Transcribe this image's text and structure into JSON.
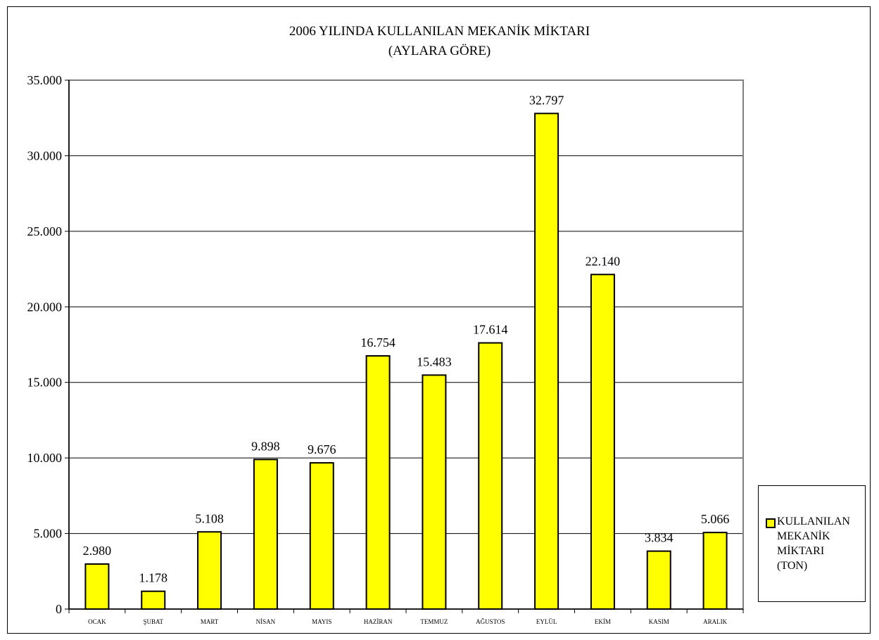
{
  "chart_data": {
    "type": "bar",
    "title": "2006 YILINDA KULLANILAN MEKANİK MİKTARI",
    "subtitle": "(AYLARA GÖRE)",
    "categories": [
      "OCAK",
      "ŞUBAT",
      "MART",
      "NİSAN",
      "MAYIS",
      "HAZİRAN",
      "TEMMUZ",
      "AĞUSTOS",
      "EYLÜL",
      "EKİM",
      "KASIM",
      "ARALIK"
    ],
    "series": [
      {
        "name": "KULLANILAN MEKANİK MİKTARI (TON)",
        "values": [
          2980,
          1178,
          5108,
          9898,
          9676,
          16754,
          15483,
          17614,
          32797,
          22140,
          3834,
          5066
        ],
        "data_labels": [
          "2.980",
          "1.178",
          "5.108",
          "9.898",
          "9.676",
          "16.754",
          "15.483",
          "17.614",
          "32.797",
          "22.140",
          "3.834",
          "5.066"
        ],
        "color": "#ffff00"
      }
    ],
    "ylim": [
      0,
      35000
    ],
    "yticks": [
      0,
      5000,
      10000,
      15000,
      20000,
      25000,
      30000,
      35000
    ],
    "ytick_labels": [
      "0",
      "5.000",
      "10.000",
      "15.000",
      "20.000",
      "25.000",
      "30.000",
      "35.000"
    ],
    "xlabel": "",
    "ylabel": "",
    "grid": true,
    "legend_position": "right"
  },
  "legend": {
    "label_lines": [
      "KULLANILAN",
      "MEKANİK",
      "MİKTARI",
      "(TON)"
    ]
  },
  "colors": {
    "bar_fill": "#ffff00",
    "bar_stroke": "#000000",
    "grid": "#000000",
    "plot_border": "#808080",
    "background": "#ffffff"
  }
}
